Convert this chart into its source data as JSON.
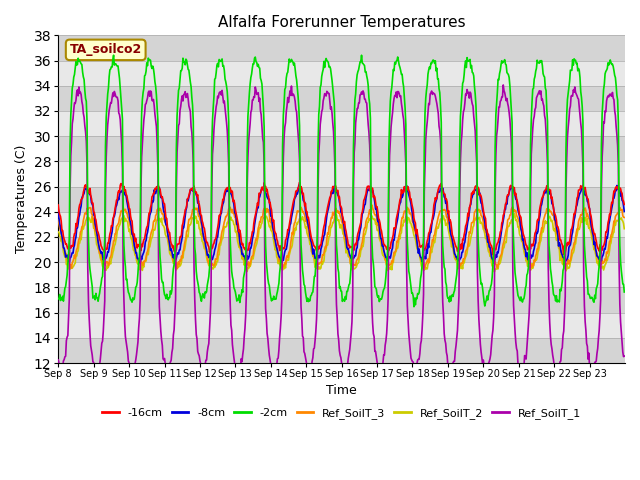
{
  "title": "Alfalfa Forerunner Temperatures",
  "ylabel": "Temperatures (C)",
  "xlabel": "Time",
  "ylim": [
    12,
    38
  ],
  "yticks": [
    12,
    14,
    16,
    18,
    20,
    22,
    24,
    26,
    28,
    30,
    32,
    34,
    36,
    38
  ],
  "annotation_text": "TA_soilco2",
  "annotation_color": "#880000",
  "annotation_bg": "#ffffcc",
  "annotation_border": "#aa8800",
  "series_colors": {
    "-16cm": "#ff0000",
    "-8cm": "#0000dd",
    "-2cm": "#00dd00",
    "Ref_SoilT_3": "#ff8800",
    "Ref_SoilT_2": "#cccc00",
    "Ref_SoilT_1": "#aa00aa"
  },
  "linewidth": 1.2,
  "x_tick_labels": [
    "Sep 8",
    "Sep 9",
    "Sep 10",
    "Sep 11",
    "Sep 12",
    "Sep 13",
    "Sep 14",
    "Sep 15",
    "Sep 16",
    "Sep 17",
    "Sep 18",
    "Sep 19",
    "Sep 20",
    "Sep 21",
    "Sep 22",
    "Sep 23"
  ],
  "days_count": 16
}
